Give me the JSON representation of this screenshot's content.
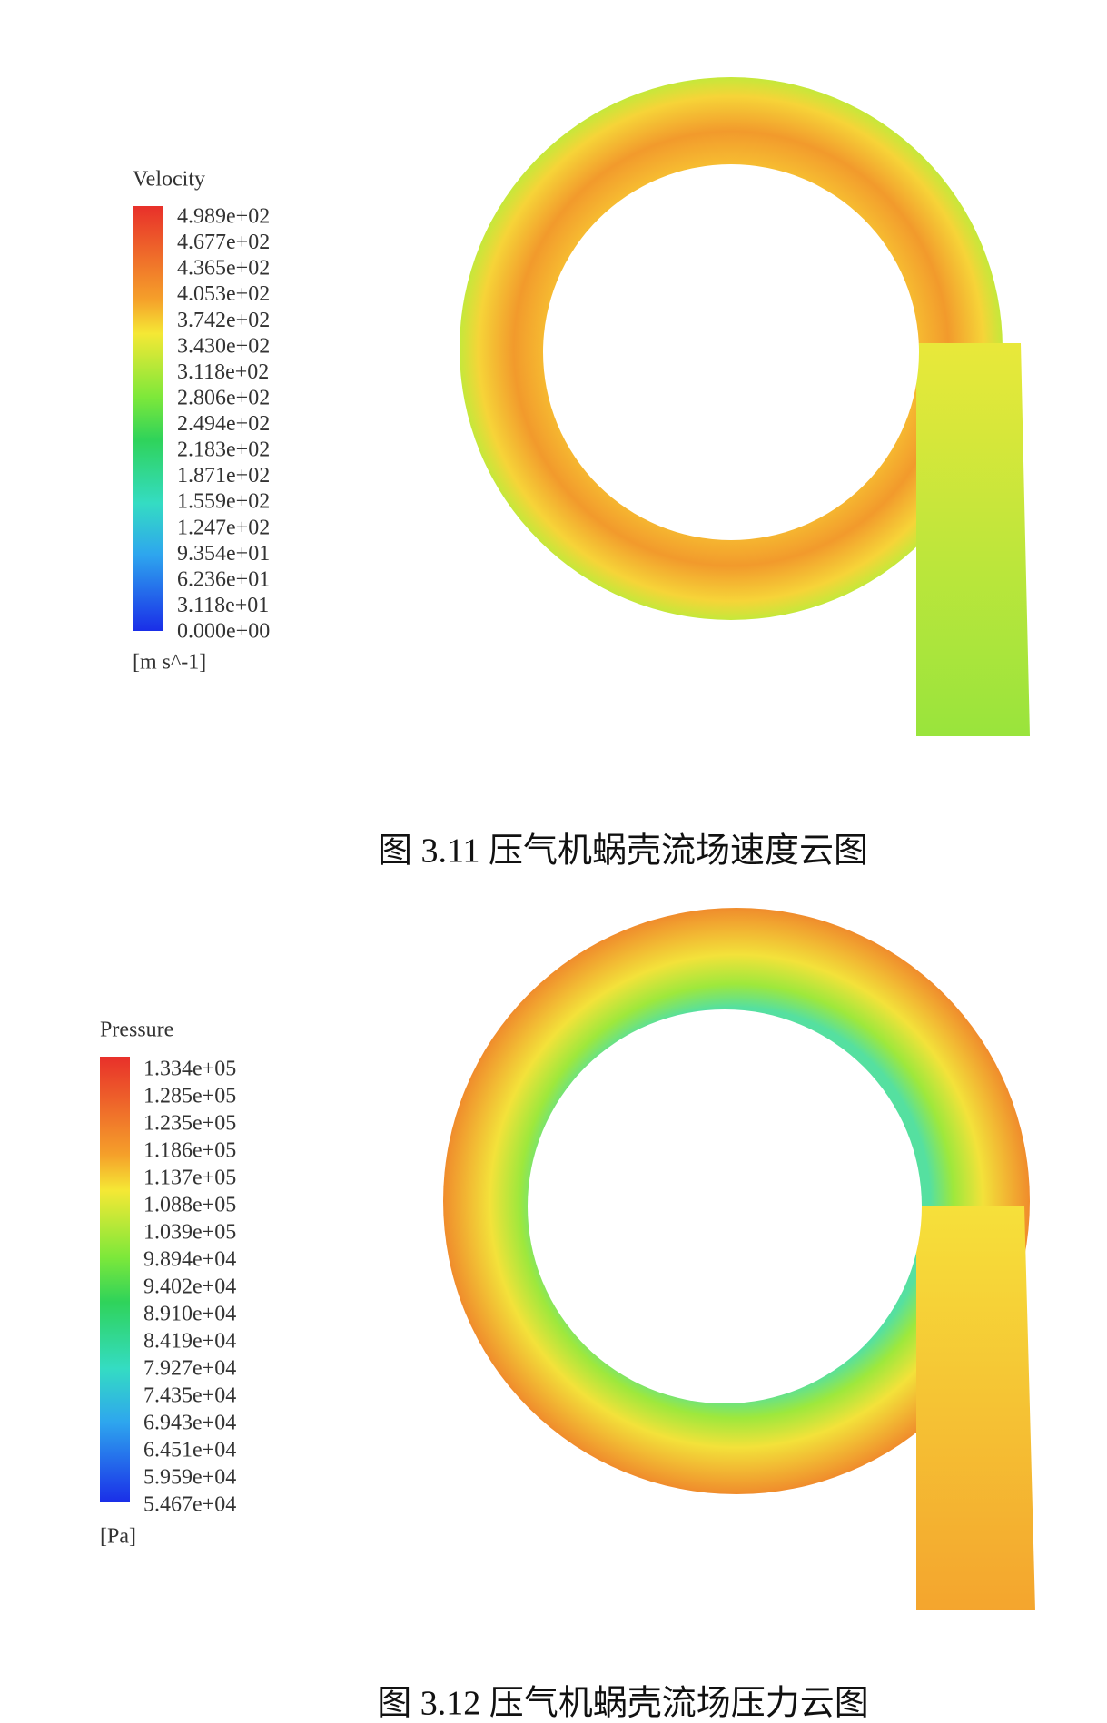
{
  "figures": [
    {
      "legend": {
        "title": "Velocity",
        "labels": [
          "4.989e+02",
          "4.677e+02",
          "4.365e+02",
          "4.053e+02",
          "3.742e+02",
          "3.430e+02",
          "3.118e+02",
          "2.806e+02",
          "2.494e+02",
          "2.183e+02",
          "1.871e+02",
          "1.559e+02",
          "1.247e+02",
          "9.354e+01",
          "6.236e+01",
          "3.118e+01",
          "0.000e+00"
        ],
        "unit": "[m s^-1]"
      },
      "caption": "图 3.11 压气机蜗壳流场速度云图"
    },
    {
      "legend": {
        "title": "Pressure",
        "labels": [
          "1.334e+05",
          "1.285e+05",
          "1.235e+05",
          "1.186e+05",
          "1.137e+05",
          "1.088e+05",
          "1.039e+05",
          "9.894e+04",
          "9.402e+04",
          "8.910e+04",
          "8.419e+04",
          "7.927e+04",
          "7.435e+04",
          "6.943e+04",
          "6.451e+04",
          "5.959e+04",
          "5.467e+04"
        ],
        "unit": "[Pa]"
      },
      "caption": "图 3.12 压气机蜗壳流场压力云图"
    }
  ]
}
